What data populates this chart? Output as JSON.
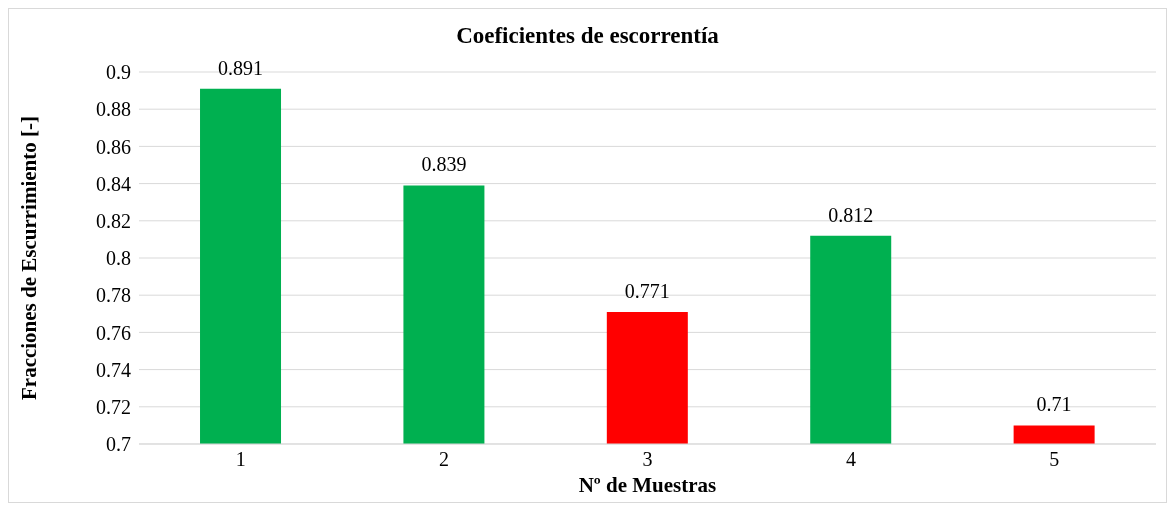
{
  "chart_data": {
    "type": "bar",
    "title": "Coeficientes de escorrentía",
    "xlabel": "Nº de Muestras",
    "ylabel": "Fracciones de Escurrimiento [-]",
    "categories": [
      "1",
      "2",
      "3",
      "4",
      "5"
    ],
    "values": [
      0.891,
      0.839,
      0.771,
      0.812,
      0.71
    ],
    "colors": [
      "#00b050",
      "#00b050",
      "#ff0000",
      "#00b050",
      "#ff0000"
    ],
    "ylim": [
      0.7,
      0.9
    ],
    "yticks": [
      0.7,
      0.72,
      0.74,
      0.76,
      0.78,
      0.8,
      0.82,
      0.84,
      0.86,
      0.88,
      0.9
    ],
    "grid": "y",
    "data_labels": true
  }
}
